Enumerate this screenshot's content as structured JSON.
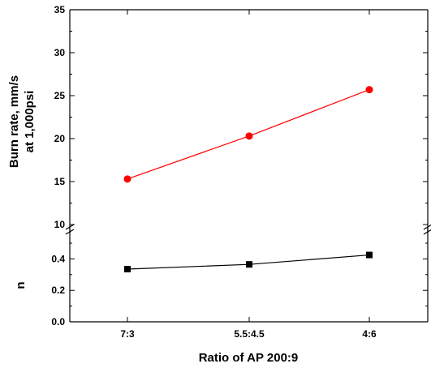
{
  "chart_data": {
    "type": "line",
    "xlabel": "Ratio of AP 200:9",
    "categories": [
      "7:3",
      "5.5:4.5",
      "4:6"
    ],
    "panels": [
      {
        "ylabel_line1": "Burn rate, mm/s",
        "ylabel_line2": "at 1,000psi",
        "ylim": [
          10,
          35
        ],
        "yticks": [
          "10",
          "15",
          "20",
          "25",
          "30",
          "35"
        ],
        "series": [
          {
            "values": [
              15.3,
              20.3,
              25.7
            ],
            "color": "#ff0000",
            "marker": "circle"
          }
        ]
      },
      {
        "ylabel": "n",
        "ylim": [
          0.0,
          0.5
        ],
        "yticks": [
          "0.0",
          "0.2",
          "0.4"
        ],
        "series": [
          {
            "values": [
              0.335,
              0.365,
              0.425
            ],
            "color": "#000000",
            "marker": "square"
          }
        ]
      }
    ],
    "grid": false
  }
}
